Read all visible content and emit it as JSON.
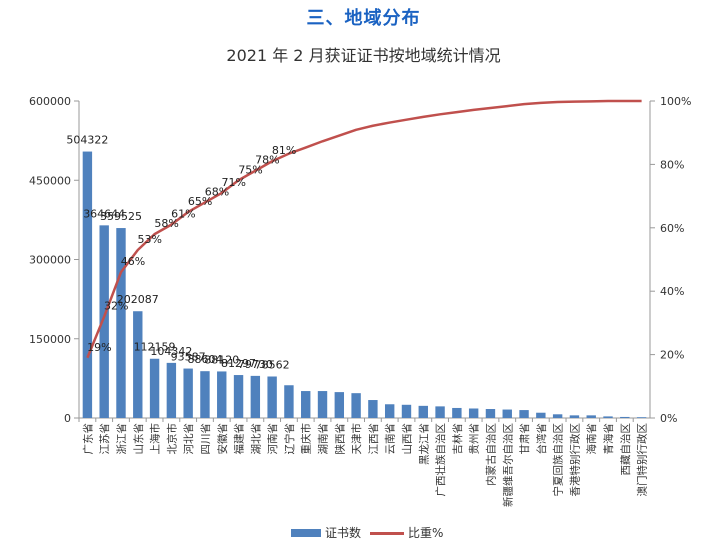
{
  "section_heading": "三、地域分布",
  "chart_data": {
    "type": "bar",
    "title": "2021 年 2 月获证证书按地域统计情况",
    "categories": [
      "广东省",
      "江苏省",
      "浙江省",
      "山东省",
      "上海市",
      "北京市",
      "河北省",
      "四川省",
      "安徽省",
      "福建省",
      "湖北省",
      "河南省",
      "辽宁省",
      "重庆市",
      "湖南省",
      "陕西省",
      "天津市",
      "江西省",
      "云南省",
      "山西省",
      "黑龙江省",
      "广西壮族自治区",
      "吉林省",
      "贵州省",
      "内蒙古自治区",
      "新疆维吾尔自治区",
      "甘肃省",
      "台湾省",
      "宁夏回族自治区",
      "香港特别行政区",
      "海南省",
      "青海省",
      "西藏自治区",
      "澳门特别行政区"
    ],
    "series": [
      {
        "name": "证书数",
        "type": "bar",
        "color": "#4f81bd",
        "axis": "left",
        "values": [
          504322,
          364644,
          359525,
          202087,
          112159,
          104342,
          93587,
          88604,
          88120,
          81297,
          79730,
          78562,
          62000,
          51000,
          51000,
          49000,
          47000,
          34000,
          26000,
          25000,
          23000,
          22000,
          19000,
          18000,
          17000,
          16000,
          15000,
          10000,
          7000,
          5000,
          5000,
          3000,
          2000,
          1500
        ],
        "data_labels": [
          "504322",
          "364644",
          "359525",
          "202087",
          "112159",
          "104342",
          "93587",
          "88604",
          "88120",
          "81297",
          "79730",
          "78562"
        ]
      },
      {
        "name": "比重%",
        "type": "line",
        "color": "#c0504d",
        "axis": "right",
        "values": [
          19,
          32,
          46,
          53,
          58,
          61,
          65,
          68,
          71,
          75,
          78,
          81,
          83.4,
          85.3,
          87.3,
          89.1,
          90.9,
          92.2,
          93.2,
          94.1,
          95,
          95.8,
          96.5,
          97.2,
          97.8,
          98.4,
          99,
          99.4,
          99.7,
          99.8,
          99.9,
          100,
          100,
          100
        ],
        "data_labels": [
          "19%",
          "32%",
          "46%",
          "53%",
          "58%",
          "61%",
          "65%",
          "68%",
          "71%",
          "75%",
          "78%",
          "81%"
        ]
      }
    ],
    "y_left": {
      "ylim": [
        0,
        600000
      ],
      "ticks": [
        "0",
        "150000",
        "300000",
        "450000",
        "600000"
      ]
    },
    "y_right": {
      "ylim": [
        0,
        100
      ],
      "ticks": [
        "0%",
        "20%",
        "40%",
        "60%",
        "80%",
        "100%"
      ]
    },
    "grid": false,
    "legend_position": "bottom"
  },
  "legend": {
    "bar_label": "证书数",
    "line_label": "比重%"
  }
}
